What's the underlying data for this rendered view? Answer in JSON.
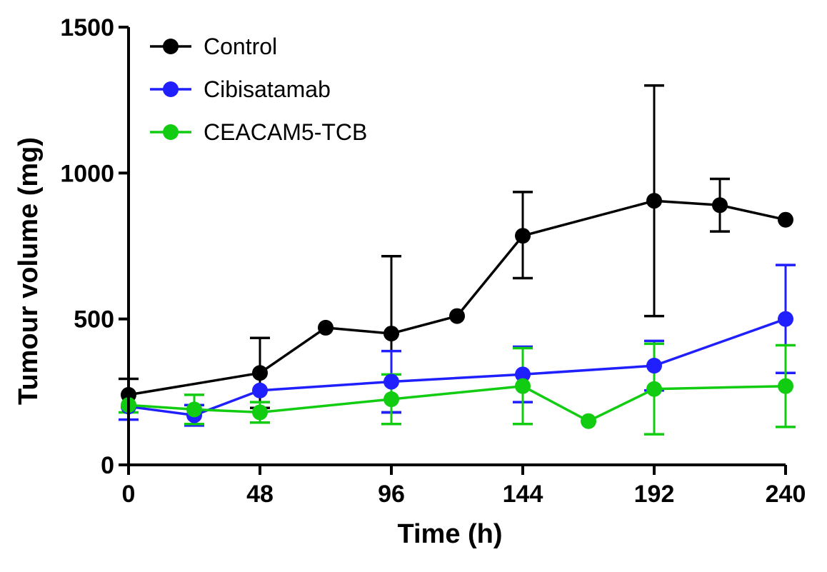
{
  "chart_data": {
    "type": "line",
    "title": "",
    "xlabel": "Time (h)",
    "ylabel": "Tumour volume (mg)",
    "xlim": [
      0,
      240
    ],
    "ylim": [
      0,
      1500
    ],
    "xticks": [
      0,
      48,
      96,
      144,
      192,
      240
    ],
    "yticks": [
      0,
      500,
      1000,
      1500
    ],
    "xtick_labels": [
      "0",
      "48",
      "96",
      "144",
      "192",
      "240"
    ],
    "ytick_labels": [
      "0",
      "500",
      "1000",
      "1500"
    ],
    "grid": false,
    "legend_position": "top-left",
    "series": [
      {
        "name": "Control",
        "color": "#000000",
        "points": [
          {
            "x": 0,
            "y": 240,
            "err_up": 55,
            "err_down": 0
          },
          {
            "x": 48,
            "y": 315,
            "err_up": 120,
            "err_down": 120
          },
          {
            "x": 72,
            "y": 470,
            "err_up": 0,
            "err_down": 0
          },
          {
            "x": 96,
            "y": 450,
            "err_up": 265,
            "err_down": 270
          },
          {
            "x": 120,
            "y": 510,
            "err_up": 0,
            "err_down": 0
          },
          {
            "x": 144,
            "y": 785,
            "err_up": 150,
            "err_down": 145
          },
          {
            "x": 192,
            "y": 905,
            "err_up": 395,
            "err_down": 395
          },
          {
            "x": 216,
            "y": 890,
            "err_up": 90,
            "err_down": 90
          },
          {
            "x": 240,
            "y": 840,
            "err_up": 0,
            "err_down": 0
          }
        ]
      },
      {
        "name": "Cibisatamab",
        "color": "#1f1fff",
        "points": [
          {
            "x": 0,
            "y": 200,
            "err_up": 0,
            "err_down": 45
          },
          {
            "x": 24,
            "y": 170,
            "err_up": 35,
            "err_down": 35
          },
          {
            "x": 48,
            "y": 255,
            "err_up": 0,
            "err_down": 0
          },
          {
            "x": 96,
            "y": 285,
            "err_up": 105,
            "err_down": 105
          },
          {
            "x": 144,
            "y": 310,
            "err_up": 95,
            "err_down": 95
          },
          {
            "x": 192,
            "y": 340,
            "err_up": 85,
            "err_down": 85
          },
          {
            "x": 240,
            "y": 500,
            "err_up": 185,
            "err_down": 185
          }
        ]
      },
      {
        "name": "CEACAM5-TCB",
        "color": "#11cc11",
        "points": [
          {
            "x": 0,
            "y": 205,
            "err_up": 0,
            "err_down": 25
          },
          {
            "x": 24,
            "y": 190,
            "err_up": 50,
            "err_down": 50
          },
          {
            "x": 48,
            "y": 180,
            "err_up": 35,
            "err_down": 35
          },
          {
            "x": 96,
            "y": 225,
            "err_up": 85,
            "err_down": 85
          },
          {
            "x": 144,
            "y": 270,
            "err_up": 130,
            "err_down": 130
          },
          {
            "x": 168,
            "y": 150,
            "err_up": 0,
            "err_down": 0
          },
          {
            "x": 192,
            "y": 260,
            "err_up": 155,
            "err_down": 155
          },
          {
            "x": 240,
            "y": 270,
            "err_up": 140,
            "err_down": 140
          }
        ]
      }
    ]
  }
}
